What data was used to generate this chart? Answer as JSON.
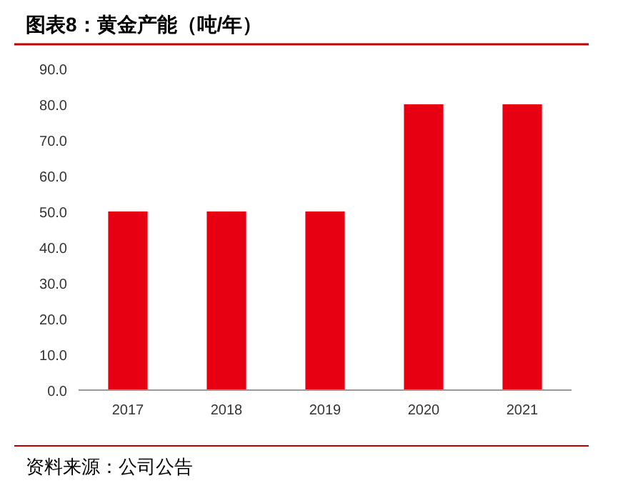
{
  "chart_data": {
    "type": "bar",
    "title": "图表8：黄金产能（吨/年）",
    "categories": [
      "2017",
      "2018",
      "2019",
      "2020",
      "2021"
    ],
    "values": [
      50,
      50,
      50,
      80,
      80
    ],
    "color": "#e60012",
    "ylim": [
      0,
      90
    ],
    "yticks": [
      {
        "value": 0,
        "label": "0.0"
      },
      {
        "value": 10,
        "label": "10.0"
      },
      {
        "value": 20,
        "label": "20.0"
      },
      {
        "value": 30,
        "label": "30.0"
      },
      {
        "value": 40,
        "label": "40.0"
      },
      {
        "value": 50,
        "label": "50.0"
      },
      {
        "value": 60,
        "label": "60.0"
      },
      {
        "value": 70,
        "label": "70.0"
      },
      {
        "value": 80,
        "label": "80.0"
      },
      {
        "value": 90,
        "label": "90.0"
      }
    ],
    "grid": false,
    "annotations": [
      "资料来源：公司公告"
    ]
  }
}
